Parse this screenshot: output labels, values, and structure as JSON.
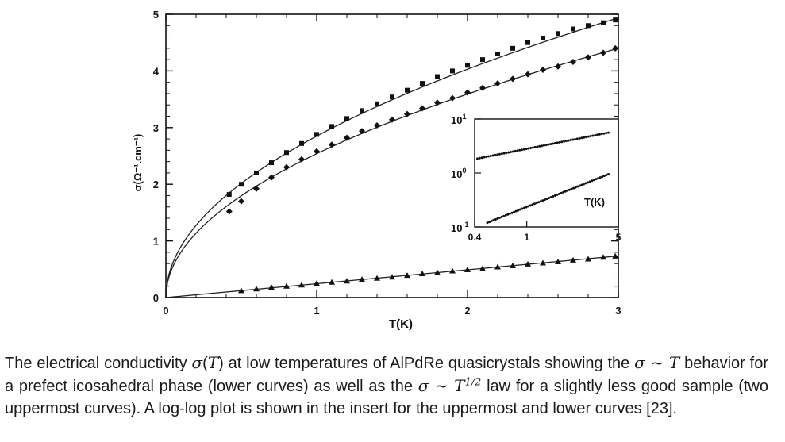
{
  "chart_data": {
    "type": "scatter",
    "xlabel": "T(K)",
    "ylabel": "σ(Ω⁻¹.cm⁻¹)",
    "xlim": [
      0,
      3
    ],
    "ylim": [
      0,
      5
    ],
    "x_ticks": [
      "0",
      "1",
      "2",
      "3"
    ],
    "y_ticks": [
      "0",
      "1",
      "2",
      "3",
      "4",
      "5"
    ],
    "series": [
      {
        "marker": "square",
        "fit": "sqrt",
        "fit_coef": 2.85,
        "x": [
          0.42,
          0.5,
          0.6,
          0.7,
          0.8,
          0.9,
          1.0,
          1.1,
          1.2,
          1.3,
          1.4,
          1.5,
          1.6,
          1.7,
          1.8,
          1.9,
          2.0,
          2.1,
          2.2,
          2.3,
          2.4,
          2.5,
          2.6,
          2.7,
          2.8,
          2.9,
          2.98
        ],
        "values": [
          1.82,
          2.0,
          2.2,
          2.38,
          2.56,
          2.72,
          2.88,
          3.02,
          3.16,
          3.3,
          3.42,
          3.54,
          3.66,
          3.78,
          3.9,
          4.0,
          4.1,
          4.2,
          4.3,
          4.4,
          4.5,
          4.58,
          4.66,
          4.74,
          4.8,
          4.85,
          4.9
        ]
      },
      {
        "marker": "diamond",
        "fit": "sqrt",
        "fit_coef": 2.54,
        "x": [
          0.42,
          0.5,
          0.6,
          0.7,
          0.8,
          0.9,
          1.0,
          1.1,
          1.2,
          1.3,
          1.4,
          1.5,
          1.6,
          1.7,
          1.8,
          1.9,
          2.0,
          2.1,
          2.2,
          2.3,
          2.4,
          2.5,
          2.6,
          2.7,
          2.8,
          2.9,
          2.98
        ],
        "values": [
          1.52,
          1.7,
          1.92,
          2.12,
          2.3,
          2.44,
          2.58,
          2.7,
          2.82,
          2.94,
          3.04,
          3.14,
          3.24,
          3.34,
          3.44,
          3.52,
          3.62,
          3.7,
          3.78,
          3.86,
          3.94,
          4.02,
          4.08,
          4.16,
          4.24,
          4.32,
          4.4
        ]
      },
      {
        "marker": "triangle",
        "fit": "linear",
        "fit_coef": 0.245,
        "x": [
          0.5,
          0.6,
          0.7,
          0.8,
          0.9,
          1.0,
          1.1,
          1.2,
          1.3,
          1.4,
          1.5,
          1.6,
          1.7,
          1.8,
          1.9,
          2.0,
          2.1,
          2.2,
          2.3,
          2.4,
          2.5,
          2.6,
          2.7,
          2.8,
          2.9,
          2.98
        ],
        "values": [
          0.12,
          0.15,
          0.18,
          0.2,
          0.22,
          0.25,
          0.27,
          0.29,
          0.32,
          0.34,
          0.36,
          0.39,
          0.42,
          0.44,
          0.47,
          0.49,
          0.51,
          0.54,
          0.56,
          0.59,
          0.61,
          0.63,
          0.66,
          0.68,
          0.71,
          0.73
        ]
      }
    ],
    "inset": {
      "type": "scatter",
      "scale": "log-log",
      "xlabel": "T(K)",
      "xlim": [
        0.4,
        5
      ],
      "ylim": [
        0.1,
        10
      ],
      "x_ticks": [
        {
          "value": 0.4,
          "label": "0.4"
        },
        {
          "value": 1,
          "label": "1"
        },
        {
          "value": 5,
          "label": "5"
        }
      ],
      "y_ticks": [
        {
          "value": 10,
          "label": "10",
          "exp": "1"
        },
        {
          "value": 1,
          "label": "10",
          "exp": "0"
        },
        {
          "value": 0.1,
          "label": "10",
          "exp": "-1"
        }
      ],
      "series": [
        {
          "law": "sqrt",
          "x_start": 0.42,
          "x_end": 4.2,
          "y_start": 1.85,
          "y_end": 5.6
        },
        {
          "law": "linear",
          "x_start": 0.5,
          "x_end": 4.2,
          "y_start": 0.12,
          "y_end": 0.95
        }
      ]
    }
  },
  "caption": {
    "part1": "The electrical conductivity ",
    "sym_sigma": "σ",
    "sym_T": "T",
    "part2": " at low temperatures of AlPdRe quasicrystals showing the ",
    "law1": "σ ~ T",
    "part3": " behavior for a prefect icosahedral phase (lower curves) as well as the ",
    "law2": "σ ~ T",
    "law2_exp": "1/2",
    "part4": " law for a slightly less good sample (two uppermost curves). A log-log plot is shown in the insert for the uppermost and lower curves [23]."
  }
}
